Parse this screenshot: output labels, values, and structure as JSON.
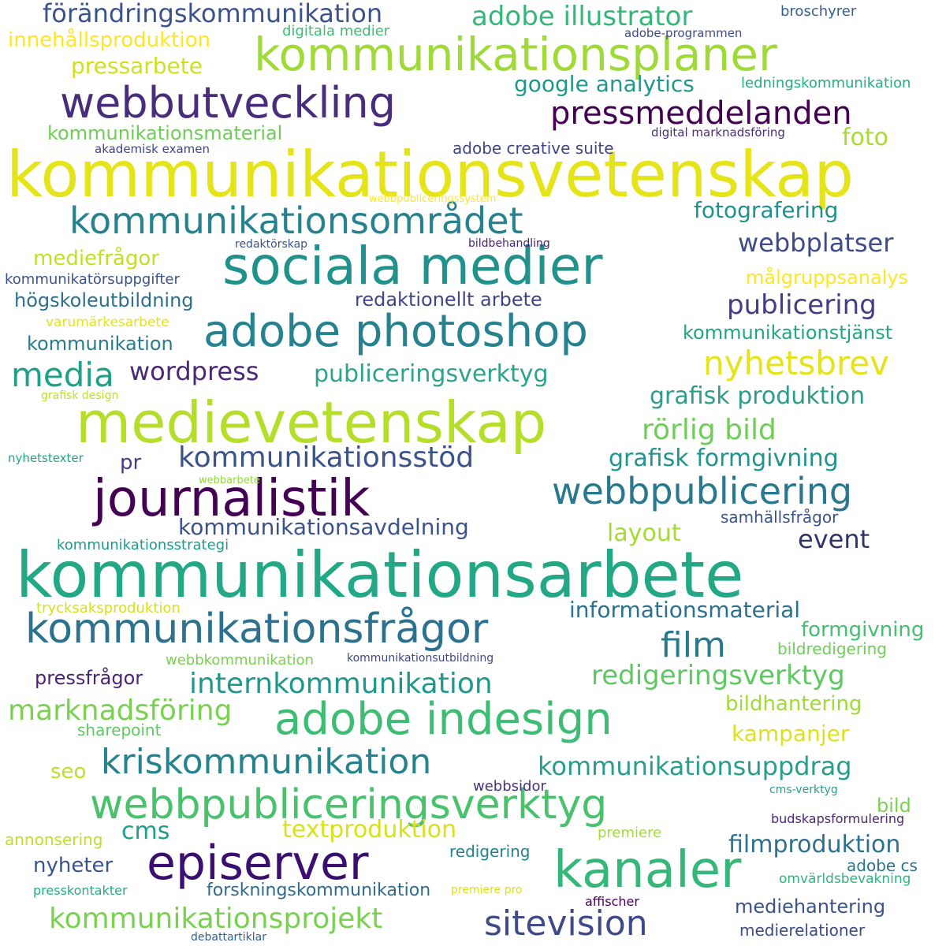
{
  "words": [
    {
      "text": "kommunikationsvetenskap",
      "color": "#e5e419"
    },
    {
      "text": "kommunikationsarbete",
      "color": "#22a884"
    },
    {
      "text": "medievetenskap",
      "color": "#b5de2b"
    },
    {
      "text": "kommunikationsplaner",
      "color": "#a0da39"
    },
    {
      "text": "sociala medier",
      "color": "#21918c"
    },
    {
      "text": "journalistik",
      "color": "#440154"
    },
    {
      "text": "webbutveckling",
      "color": "#472d7b"
    },
    {
      "text": "kommunikationsfrågor",
      "color": "#2c728e"
    },
    {
      "text": "adobe photoshop",
      "color": "#26828e"
    },
    {
      "text": "webbpubliceringsverktyg",
      "color": "#4ac16d"
    },
    {
      "text": "kanaler",
      "color": "#35b779"
    },
    {
      "text": "adobe indesign",
      "color": "#3dbc74"
    },
    {
      "text": "episerver",
      "color": "#3b0f70"
    },
    {
      "text": "kommunikationsområdet",
      "color": "#26828e"
    },
    {
      "text": "kriskommunikation",
      "color": "#25838e"
    },
    {
      "text": "webbpublicering",
      "color": "#2a788e"
    },
    {
      "text": "pressmeddelanden",
      "color": "#440154"
    },
    {
      "text": "sitevision",
      "color": "#3e4a89"
    },
    {
      "text": "internkommunikation",
      "color": "#1f988b"
    },
    {
      "text": "kommunikationsprojekt",
      "color": "#7ad151"
    },
    {
      "text": "media",
      "color": "#1fa088"
    },
    {
      "text": "nyhetsbrev",
      "color": "#e5e419"
    },
    {
      "text": "förändringskommunikation",
      "color": "#3b528b"
    },
    {
      "text": "adobe illustrator",
      "color": "#35b779"
    },
    {
      "text": "marknadsföring",
      "color": "#7ad151"
    },
    {
      "text": "redigeringsverktyg",
      "color": "#5ec962"
    },
    {
      "text": "film",
      "color": "#2a788e"
    },
    {
      "text": "kommunikationsstöd",
      "color": "#3b528b"
    },
    {
      "text": "rörlig bild",
      "color": "#6ece58"
    },
    {
      "text": "kommunikationsuppdrag",
      "color": "#2a9d8a"
    },
    {
      "text": "publiceringsverktyg",
      "color": "#2ea38a"
    },
    {
      "text": "wordpress",
      "color": "#482878"
    },
    {
      "text": "publicering",
      "color": "#433e85"
    },
    {
      "text": "grafisk produktion",
      "color": "#2d9c88"
    },
    {
      "text": "textproduktion",
      "color": "#d8e219"
    },
    {
      "text": "filmproduktion",
      "color": "#2c728e"
    },
    {
      "text": "kommunikationsavdelning",
      "color": "#3b528b"
    },
    {
      "text": "grafisk formgivning",
      "color": "#1f968b"
    },
    {
      "text": "webbplatser",
      "color": "#3e4a89"
    },
    {
      "text": "google analytics",
      "color": "#1f988b"
    },
    {
      "text": "fotografering",
      "color": "#21918c"
    },
    {
      "text": "pressarbete",
      "color": "#d0e11c"
    },
    {
      "text": "informationsmaterial",
      "color": "#2c728e"
    },
    {
      "text": "event",
      "color": "#31336b"
    },
    {
      "text": "mediehantering",
      "color": "#3b528b"
    },
    {
      "text": "layout",
      "color": "#a5db36"
    },
    {
      "text": "innehållsproduktion",
      "color": "#fde725"
    },
    {
      "text": "kampanjer",
      "color": "#dde318"
    },
    {
      "text": "kommunikationsmaterial",
      "color": "#6ece58"
    },
    {
      "text": "redaktionellt arbete",
      "color": "#414487"
    },
    {
      "text": "pressfrågor",
      "color": "#482475"
    },
    {
      "text": "högskoleutbildning",
      "color": "#2d708e"
    },
    {
      "text": "kommunikation",
      "color": "#287c8e"
    },
    {
      "text": "forskningskommunikation",
      "color": "#2f6b8e"
    },
    {
      "text": "bildhantering",
      "color": "#a0da39"
    },
    {
      "text": "mediefrågor",
      "color": "#c2df23"
    },
    {
      "text": "kommunikationstjänst",
      "color": "#21a685"
    },
    {
      "text": "nyheter",
      "color": "#3b528b"
    },
    {
      "text": "formgivning",
      "color": "#44bf70"
    },
    {
      "text": "foto",
      "color": "#a8db34"
    },
    {
      "text": "adobe creative suite",
      "color": "#414487"
    },
    {
      "text": "målgruppsanalys",
      "color": "#fde725"
    },
    {
      "text": "cms",
      "color": "#1f9e89"
    },
    {
      "text": "bild",
      "color": "#7ad151"
    },
    {
      "text": "redigering",
      "color": "#26828e"
    },
    {
      "text": "seo",
      "color": "#c2df23"
    },
    {
      "text": "pr",
      "color": "#433e85"
    },
    {
      "text": "samhällsfrågor",
      "color": "#3b528b"
    },
    {
      "text": "bildredigering",
      "color": "#6ece58"
    },
    {
      "text": "sharepoint",
      "color": "#5ec962"
    },
    {
      "text": "adobe cs",
      "color": "#2c728e"
    },
    {
      "text": "medierelationer",
      "color": "#3e4a89"
    },
    {
      "text": "premiere",
      "color": "#a5db36"
    },
    {
      "text": "ledningskommunikation",
      "color": "#26ad81"
    },
    {
      "text": "kommunikatörsuppgifter",
      "color": "#3b528b"
    },
    {
      "text": "trycksaksproduktion",
      "color": "#d5e21a"
    },
    {
      "text": "kommunikationsstrategi",
      "color": "#1f9a8a"
    },
    {
      "text": "webbkommunikation",
      "color": "#7ad151"
    },
    {
      "text": "presskontakter",
      "color": "#25ab82"
    },
    {
      "text": "varumärkesarbete",
      "color": "#e2e418"
    },
    {
      "text": "annonsering",
      "color": "#bddf26"
    },
    {
      "text": "digitala medier",
      "color": "#3fbc73"
    },
    {
      "text": "broschyrer",
      "color": "#355f8d"
    },
    {
      "text": "budskapsformulering",
      "color": "#482878"
    },
    {
      "text": "omvärldsbevakning",
      "color": "#2fb47c"
    },
    {
      "text": "webbsidor",
      "color": "#46337e"
    },
    {
      "text": "affischer",
      "color": "#440154"
    },
    {
      "text": "adobe-programmen",
      "color": "#3e4a89"
    },
    {
      "text": "akademisk examen",
      "color": "#414487"
    },
    {
      "text": "digital marknadsföring",
      "color": "#472d7b"
    },
    {
      "text": "bildbehandling",
      "color": "#482475"
    },
    {
      "text": "redaktörskap",
      "color": "#3b528b"
    },
    {
      "text": "nyhetstexter",
      "color": "#20a486"
    },
    {
      "text": "webbarbete",
      "color": "#95d840"
    },
    {
      "text": "grafisk design",
      "color": "#bddf26"
    },
    {
      "text": "kommunikationsutbildning",
      "color": "#404688"
    },
    {
      "text": "cms-verktyg",
      "color": "#2a9d8a"
    },
    {
      "text": "webbpubliceringssystem",
      "color": "#fde725"
    },
    {
      "text": "premiere pro",
      "color": "#d8e219"
    },
    {
      "text": "debattartiklar",
      "color": "#355f8d"
    }
  ]
}
